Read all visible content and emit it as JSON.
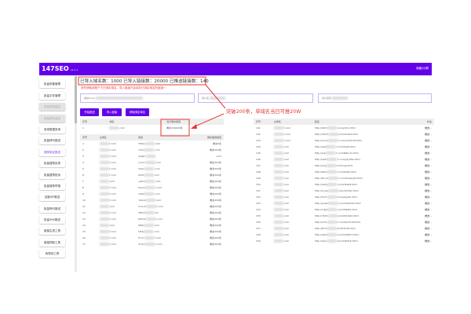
{
  "header": {
    "logo": "147SEO",
    "version": "v1.1.1",
    "right_link": "收藏QQ群"
  },
  "sidebar": [
    "批量采集管理",
    "批量文件管理",
    "批量收录监控",
    "批量排名监控",
    "收录数据查询",
    "批量神马推送",
    "搜狗验证推送",
    "批量搜狗反馈",
    "批量搜狗投诉",
    "批量搜狗举报",
    "百度API推送",
    "批量神马推送",
    "批量360推送",
    "链接生成工具",
    "链接抓取工具",
    "伪原创工具"
  ],
  "sidebar_active": 6,
  "sidebar_disabled": [
    2,
    3
  ],
  "summary": "已导入域名数：1000 已导入链接数：20000 已推送链接数：140",
  "note": "请先获取该账户下已绑定域名，导入链接只会保存已绑定域名的链接～",
  "inputs": [
    {
      "label": "推送token"
    },
    {
      "label": "用户名"
    },
    {
      "label": "用户密码"
    }
  ],
  "buttons": [
    "开始推送",
    "导入链接",
    "获取绑定域名"
  ],
  "annotation": "突破200条，单域名当日可推20W",
  "quota_table": {
    "headers": [
      "序号",
      "域名",
      "当日剩余额度"
    ],
    "rows": [
      [
        "1",
        ".com",
        "剩余199000条"
      ]
    ]
  },
  "domain_table": {
    "headers": [
      "序号",
      "主域名",
      "域名",
      "剩余推送额度"
    ],
    "rows": [
      [
        "1",
        "7.com",
        "55faa",
        ".com",
        "剩余0条"
      ],
      [
        "2",
        "7.com",
        "rv5rq",
        ".com",
        "剩余200条"
      ],
      [
        "3",
        "7.com",
        "2zg67",
        "",
        ".com"
      ],
      [
        "4",
        "7.com",
        "y1nxn",
        ".com",
        "剩余200条"
      ],
      [
        "5",
        "7.com",
        "r0pm",
        ".com",
        "剩余200条"
      ],
      [
        "6",
        "7.com",
        "6zfm",
        ".com",
        "剩余200条"
      ],
      [
        "7",
        ".com",
        "u2bnt",
        ".com",
        "剩余200条"
      ],
      [
        "8",
        "7.com",
        "6sxoa",
        "7.com",
        "剩余200条"
      ],
      [
        "9",
        "7.com",
        "kd6rt",
        ".com",
        "剩余200条"
      ],
      [
        "10",
        "7.com",
        "7pbn9",
        ".com",
        "剩余200条"
      ],
      [
        "11",
        ".com",
        "mxond",
        "7.com",
        "剩余200条"
      ],
      [
        "12",
        "7.com",
        "5ffnf3",
        "om",
        "剩余200条"
      ],
      [
        "13",
        "7.com",
        "b8nhk",
        "7.com",
        "剩余200条"
      ],
      [
        "14",
        ".com",
        "f66kj",
        ".com",
        "剩余200条"
      ],
      [
        "15",
        "7.com",
        "t2t2j",
        ".com",
        "剩余200条"
      ],
      [
        "16",
        "7.com",
        "fn7rc",
        "7.com",
        "剩余200条"
      ],
      [
        "17",
        "7.com",
        "4cjmc",
        "7.com",
        "剩余200条"
      ]
    ]
  },
  "link_table": {
    "headers": [
      "序号",
      "主域名",
      "链接",
      "状态"
    ],
    "rows": [
      [
        "141",
        "7.com",
        "http://9b7z",
        "com/yz0rn.html",
        "推送..."
      ],
      [
        "142",
        "7.com",
        "http://3fa7b",
        "com/dhr9z2.html",
        "推送..."
      ],
      [
        "143",
        "7.com",
        "http://1mos",
        "7.com/y5d2ch0.html",
        "推送..."
      ],
      [
        "144",
        ".com",
        "http://lgd4",
        "com/hhsz8.html",
        "推送..."
      ],
      [
        "145",
        ".com",
        "http://sub",
        "7.com/60bn7a.html",
        "推送..."
      ],
      [
        "146",
        ".com",
        "http://ax97",
        "7.com/y2y59a.html",
        "推送..."
      ],
      [
        "147",
        ".com",
        "http://y3g",
        "com/5uaj.html",
        "推送..."
      ],
      [
        "148",
        ".com",
        "http://8aho",
        "com/a2x65.html",
        "推送..."
      ],
      [
        "149",
        ".com",
        "http://61ud",
        "7.com/bmazy29.html",
        "推送..."
      ],
      [
        "150",
        ".com",
        "http://dp5y",
        "com/1f6a95.html",
        "推送..."
      ],
      [
        "151",
        ".com",
        "http://1yuky",
        "com/z47z9z.html",
        "推送..."
      ],
      [
        "152",
        ".com",
        "http://f7e7",
        "com/adpy2h.html",
        "推送..."
      ],
      [
        "153",
        ".com",
        "http://qua47",
        "com/3x92z9h.html",
        "推送..."
      ],
      [
        "154",
        ".com",
        "http://cdp2",
        "com/7666t1.html",
        "推送..."
      ],
      [
        "155",
        ".com",
        "http://7bhh",
        "com/93m6z2.html",
        "推送..."
      ],
      [
        "156",
        ".com",
        "http://m3o",
        "7.com/ba7dr36.html",
        "推送..."
      ],
      [
        "157",
        ".com",
        "http://fb7d",
        "om253n46.html",
        "推送..."
      ],
      [
        "158",
        ".com",
        "http://a8v9",
        "com/m6d817.html",
        "推送..."
      ],
      [
        "159",
        ".com",
        "http://dpru",
        "com/2d6d16.html",
        "推送..."
      ]
    ]
  },
  "colors": {
    "brand": "#6200ea",
    "annotation": "#e53935"
  }
}
